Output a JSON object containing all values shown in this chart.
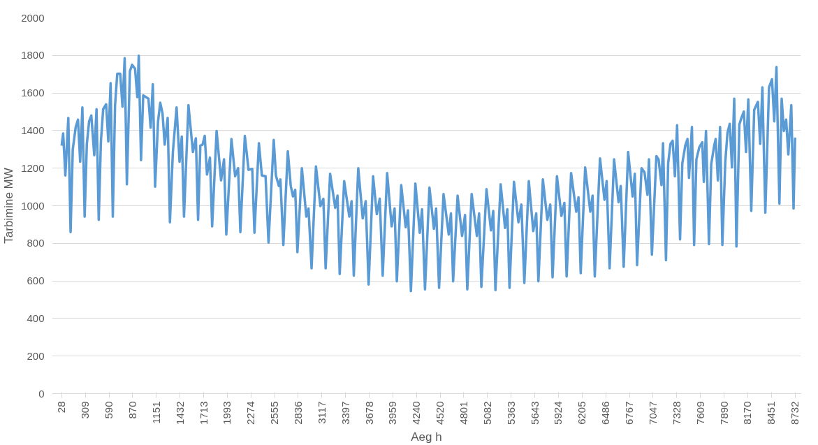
{
  "chart_data": {
    "type": "line",
    "xlabel": "Aeg h",
    "ylabel": "Tarbimine MW",
    "x": [
      28,
      46,
      72,
      107,
      134,
      160,
      195,
      222,
      248,
      274,
      301,
      327,
      354,
      380,
      415,
      442,
      468,
      494,
      521,
      556,
      582,
      609,
      635,
      662,
      688,
      723,
      750,
      776,
      802,
      838,
      864,
      899,
      926,
      943,
      970,
      996,
      1058,
      1084,
      1110,
      1137,
      1172,
      1198,
      1225,
      1251,
      1286,
      1313,
      1348,
      1392,
      1427,
      1454,
      1480,
      1533,
      1586,
      1621,
      1647,
      1674,
      1700,
      1726,
      1753,
      1788,
      1814,
      1867,
      1920,
      1955,
      1982,
      2043,
      2087,
      2122,
      2149,
      2202,
      2246,
      2290,
      2316,
      2369,
      2404,
      2448,
      2483,
      2545,
      2571,
      2606,
      2624,
      2659,
      2712,
      2747,
      2774,
      2800,
      2826,
      2879,
      2932,
      2958,
      2994,
      3046,
      3099,
      3134,
      3161,
      3214,
      3275,
      3302,
      3328,
      3381,
      3442,
      3469,
      3495,
      3548,
      3601,
      3636,
      3671,
      3724,
      3768,
      3803,
      3838,
      3891,
      3944,
      3979,
      4006,
      4058,
      4111,
      4138,
      4173,
      4226,
      4278,
      4305,
      4340,
      4393,
      4446,
      4472,
      4507,
      4560,
      4622,
      4648,
      4674,
      4727,
      4780,
      4815,
      4842,
      4894,
      4956,
      4982,
      5009,
      5070,
      5123,
      5150,
      5176,
      5238,
      5290,
      5317,
      5343,
      5396,
      5449,
      5484,
      5519,
      5572,
      5625,
      5660,
      5686,
      5739,
      5792,
      5827,
      5854,
      5906,
      5959,
      5994,
      6021,
      6074,
      6135,
      6162,
      6188,
      6241,
      6302,
      6329,
      6355,
      6417,
      6470,
      6496,
      6531,
      6584,
      6637,
      6663,
      6698,
      6751,
      6804,
      6830,
      6857,
      6910,
      6945,
      6980,
      6998,
      7033,
      7086,
      7112,
      7147,
      7165,
      7200,
      7226,
      7253,
      7279,
      7306,
      7332,
      7367,
      7394,
      7429,
      7455,
      7473,
      7508,
      7534,
      7561,
      7596,
      7631,
      7649,
      7675,
      7710,
      7737,
      7772,
      7790,
      7816,
      7842,
      7869,
      7904,
      7930,
      7957,
      7983,
      8010,
      8036,
      8071,
      8098,
      8124,
      8150,
      8177,
      8212,
      8247,
      8291,
      8318,
      8344,
      8379,
      8423,
      8458,
      8485,
      8511,
      8546,
      8573,
      8599,
      8626,
      8652,
      8687,
      8714,
      8732
    ],
    "series": [
      {
        "color": "#5b9bd5",
        "values": [
          1320,
          1385,
          1161,
          1467,
          860,
          1299,
          1419,
          1458,
          1234,
          1523,
          942,
          1329,
          1449,
          1480,
          1269,
          1514,
          925,
          1342,
          1514,
          1540,
          1342,
          1652,
          942,
          1535,
          1703,
          1703,
          1527,
          1785,
          1114,
          1716,
          1750,
          1729,
          1578,
          1798,
          1243,
          1587,
          1570,
          1415,
          1647,
          1101,
          1449,
          1548,
          1492,
          1325,
          1467,
          912,
          1286,
          1523,
          1234,
          1368,
          942,
          1535,
          1286,
          1359,
          925,
          1320,
          1325,
          1372,
          1166,
          1256,
          890,
          1398,
          1135,
          1247,
          847,
          1355,
          1157,
          1200,
          860,
          1372,
          1191,
          1196,
          856,
          1333,
          1161,
          1157,
          804,
          1350,
          1161,
          1105,
          1140,
          791,
          1290,
          1105,
          1049,
          1084,
          753,
          1200,
          942,
          985,
          667,
          1209,
          998,
          1037,
          667,
          1170,
          989,
          1054,
          637,
          1131,
          942,
          1024,
          628,
          1200,
          933,
          1024,
          581,
          1157,
          955,
          1037,
          628,
          1174,
          890,
          985,
          598,
          1110,
          886,
          976,
          546,
          1118,
          856,
          981,
          555,
          1097,
          877,
          985,
          563,
          1062,
          847,
          959,
          598,
          1054,
          839,
          951,
          555,
          1062,
          839,
          959,
          568,
          1088,
          869,
          972,
          551,
          1114,
          882,
          981,
          563,
          1127,
          912,
          1006,
          589,
          1131,
          865,
          959,
          598,
          1140,
          925,
          1006,
          619,
          1157,
          946,
          1015,
          624,
          1174,
          968,
          1045,
          641,
          1204,
          968,
          1054,
          624,
          1252,
          1032,
          1131,
          667,
          1247,
          1019,
          1105,
          675,
          1286,
          1049,
          1170,
          684,
          1200,
          1178,
          1058,
          1247,
          740,
          1264,
          1247,
          1110,
          1333,
          710,
          1226,
          1329,
          1346,
          1157,
          1428,
          821,
          1226,
          1320,
          1355,
          1148,
          1419,
          791,
          1247,
          1312,
          1338,
          1127,
          1398,
          796,
          1221,
          1320,
          1355,
          1135,
          1419,
          791,
          1234,
          1389,
          1436,
          1204,
          1570,
          783,
          1432,
          1471,
          1501,
          1286,
          1566,
          972,
          1510,
          1553,
          1329,
          1630,
          963,
          1630,
          1673,
          1449,
          1738,
          1011,
          1570,
          1398,
          1458,
          1273,
          1535,
          985,
          1363
        ]
      }
    ],
    "xlim": [
      -86,
      8801
    ],
    "xticks": [
      28,
      309,
      590,
      870,
      1151,
      1432,
      1713,
      1993,
      2274,
      2555,
      2836,
      3117,
      3397,
      3678,
      3959,
      4240,
      4520,
      4801,
      5082,
      5363,
      5643,
      5924,
      6205,
      6486,
      6767,
      7047,
      7328,
      7609,
      7890,
      8170,
      8451,
      8732
    ],
    "ylim": [
      0,
      2000
    ],
    "yticks": [
      0,
      200,
      400,
      600,
      800,
      1000,
      1200,
      1400,
      1600,
      1800,
      2000
    ],
    "grid": "y",
    "line_style": "solid"
  }
}
